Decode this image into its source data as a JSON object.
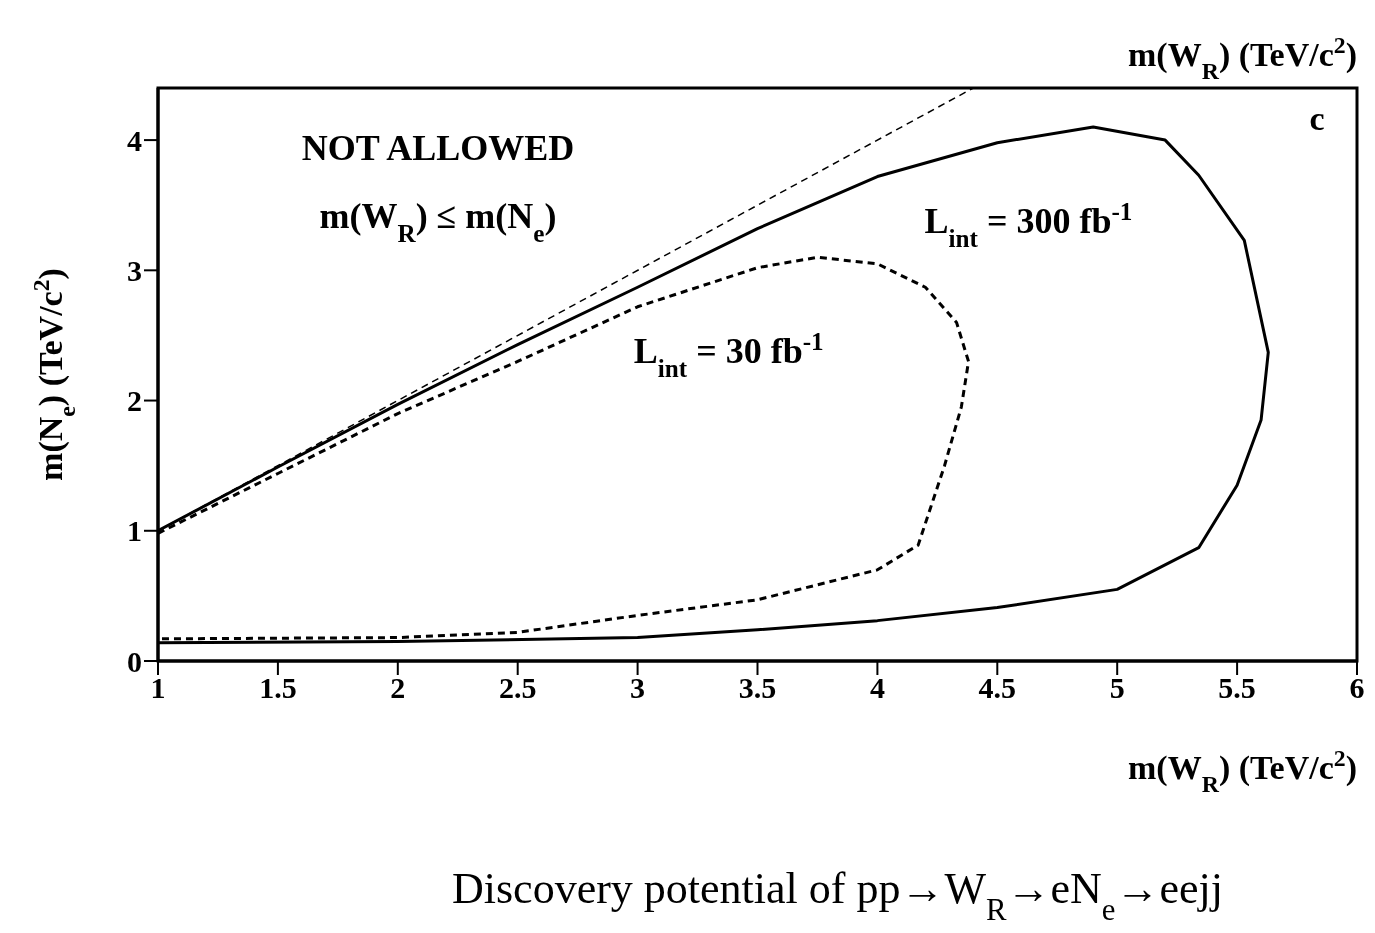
{
  "chart_data": {
    "type": "line",
    "title": "Discovery potential of pp→W$_{R}$→eN$_{e}$→eejj",
    "xlabel": "m(W$_{R}$) (TeV/c$^{2}$)",
    "ylabel": "m(N$_{e}$) (TeV/c$^{2}$)",
    "xlim": [
      1,
      6
    ],
    "xticks": [
      1,
      1.5,
      2,
      2.5,
      3,
      3.5,
      4,
      4.5,
      5,
      5.5,
      6
    ],
    "ylim": [
      0,
      4.4
    ],
    "yticks": [
      0,
      1,
      2,
      3,
      4
    ],
    "grid": false,
    "marker": "none",
    "series": [
      {
        "color": "#000000",
        "line_style": "dashed",
        "x": [
          1,
          4.4
        ],
        "values": [
          1,
          4.4
        ]
      },
      {
        "name": "L$_{int}$ = 300 fb$^{-1}$",
        "color": "#000000",
        "line_style": "solid",
        "x": [
          1,
          1.5,
          2,
          2.5,
          3,
          3.5,
          4,
          4.5,
          4.9,
          5.2,
          5.34,
          5.53,
          5.63,
          5.6,
          5.5,
          5.34,
          5,
          4.5,
          4,
          3.5,
          3,
          2,
          1
        ],
        "values": [
          1,
          1.49,
          1.97,
          2.43,
          2.87,
          3.32,
          3.72,
          3.98,
          4.1,
          4.0,
          3.73,
          3.23,
          2.37,
          1.85,
          1.35,
          0.87,
          0.55,
          0.41,
          0.31,
          0.24,
          0.18,
          0.15,
          0.14
        ]
      },
      {
        "name": "L$_{int}$ = 30 fb$^{-1}$",
        "color": "#000000",
        "line_style": "dashed",
        "x": [
          1,
          1.5,
          2,
          2.5,
          3,
          3.5,
          3.75,
          4,
          4.2,
          4.33,
          4.38,
          4.35,
          4.28,
          4.17,
          4,
          3.5,
          3,
          2.5,
          2,
          1
        ],
        "values": [
          0.98,
          1.44,
          1.9,
          2.3,
          2.72,
          3.02,
          3.1,
          3.05,
          2.87,
          2.6,
          2.3,
          1.95,
          1.5,
          0.89,
          0.7,
          0.47,
          0.35,
          0.22,
          0.18,
          0.17
        ]
      }
    ],
    "annotations": [
      "m(W$_{R}$) (TeV/c$^{2}$)",
      "c",
      "NOT ALLOWED",
      "m(W$_{R}$) ≤ m(N$_{e}$)"
    ]
  }
}
